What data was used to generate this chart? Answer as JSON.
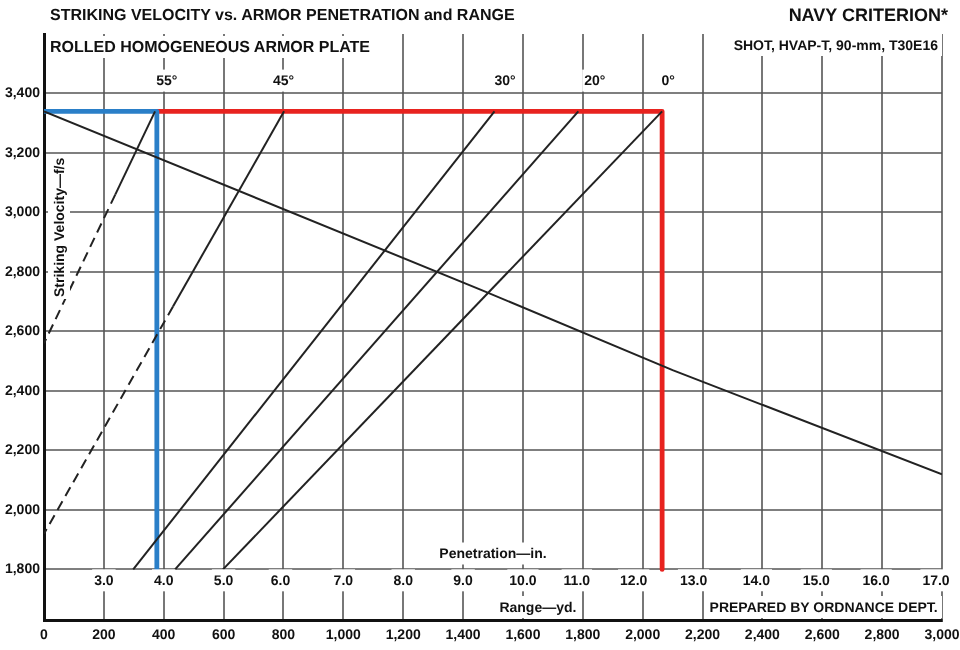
{
  "chart_data": {
    "type": "line",
    "title": "STRIKING VELOCITY vs. ARMOR PENETRATION and RANGE",
    "subtitle": "ROLLED HOMOGENEOUS ARMOR PLATE",
    "xlabel": "Range—yd.",
    "ylabel": "Striking Velocity—f/s",
    "annotations": [
      "NAVY CRITERION*",
      "SHOT, HVAP-T, 90-mm, T30E16",
      "PREPARED BY ORDNANCE DEPT.",
      "Penetration—in.",
      {
        "text": "55°",
        "x": 410,
        "y": 3440
      },
      {
        "text": "45°",
        "x": 800,
        "y": 3440
      },
      {
        "text": "30°",
        "x": 1540,
        "y": 3440
      },
      {
        "text": "20°",
        "x": 1840,
        "y": 3440
      },
      {
        "text": "0°",
        "x": 2085,
        "y": 3440
      },
      {
        "text": "3.0",
        "x": 200,
        "y": 1760
      },
      {
        "text": "4.0",
        "x": 400,
        "y": 1760
      },
      {
        "text": "5.0",
        "x": 600,
        "y": 1760
      },
      {
        "text": "6.0",
        "x": 790,
        "y": 1760
      },
      {
        "text": "7.0",
        "x": 1000,
        "y": 1760
      },
      {
        "text": "8.0",
        "x": 1200,
        "y": 1760
      },
      {
        "text": "9.0",
        "x": 1400,
        "y": 1760
      },
      {
        "text": "10.0",
        "x": 1600,
        "y": 1760
      },
      {
        "text": "11.0",
        "x": 1780,
        "y": 1760
      },
      {
        "text": "12.0",
        "x": 1970,
        "y": 1760
      },
      {
        "text": "13.0",
        "x": 2170,
        "y": 1760
      },
      {
        "text": "14.0",
        "x": 2380,
        "y": 1760
      },
      {
        "text": "15.0",
        "x": 2580,
        "y": 1760
      },
      {
        "text": "16.0",
        "x": 2780,
        "y": 1760
      },
      {
        "text": "17.0",
        "x": 2980,
        "y": 1760
      }
    ],
    "series": [
      {
        "color": "#222222",
        "x": [
          0,
          1460,
          2100,
          3000
        ],
        "values": [
          3340,
          2740,
          2470,
          2120
        ]
      },
      {
        "color": "#222222",
        "x": [
          371,
          238
        ],
        "values": [
          3340,
          3060
        ]
      },
      {
        "color": "#222222",
        "x": [
          238,
          0
        ],
        "values": [
          3060,
          2560
        ],
        "line_style": "dashed"
      },
      {
        "color": "#222222",
        "x": [
          802,
          431
        ],
        "values": [
          3340,
          2684
        ]
      },
      {
        "color": "#222222",
        "x": [
          431,
          0
        ],
        "values": [
          2684,
          1920
        ],
        "line_style": "dashed"
      },
      {
        "color": "#222222",
        "x": [
          1505,
          298
        ],
        "values": [
          3340,
          1800
        ]
      },
      {
        "color": "#222222",
        "x": [
          1785,
          438
        ],
        "values": [
          3340,
          1800
        ]
      },
      {
        "color": "#222222",
        "x": [
          2065,
          598
        ],
        "values": [
          3340,
          1800
        ]
      },
      {
        "color": "#2a7fc8",
        "x": [
          0,
          377,
          377
        ],
        "values": [
          3340,
          3340,
          1800
        ]
      },
      {
        "color": "#e8231f",
        "x": [
          377,
          2065,
          2065
        ],
        "values": [
          3340,
          3340,
          1800
        ]
      }
    ],
    "xlim": [
      0,
      3000
    ],
    "ylim": [
      1630,
      3600
    ],
    "xticks": [
      0,
      200,
      400,
      600,
      800,
      {
        "value": 1000,
        "label": "1,000"
      },
      {
        "value": 1200,
        "label": "1,200"
      },
      {
        "value": 1400,
        "label": "1,400"
      },
      {
        "value": 1600,
        "label": "1,600"
      },
      {
        "value": 1800,
        "label": "1,800"
      },
      {
        "value": 2000,
        "label": "2,000"
      },
      {
        "value": 2200,
        "label": "2,200"
      },
      {
        "value": 2400,
        "label": "2,400"
      },
      {
        "value": 2600,
        "label": "2,600"
      },
      {
        "value": 2800,
        "label": "2,800"
      },
      {
        "value": 3000,
        "label": "3,000"
      }
    ],
    "yticks": [
      {
        "value": 1800,
        "label": "1,800"
      },
      {
        "value": 2000,
        "label": "2,000"
      },
      {
        "value": 2200,
        "label": "2,200"
      },
      {
        "value": 2400,
        "label": "2,400"
      },
      {
        "value": 2600,
        "label": "2,600"
      },
      {
        "value": 2800,
        "label": "2,800"
      },
      {
        "value": 3000,
        "label": "3,000"
      },
      {
        "value": 3200,
        "label": "3,200"
      },
      {
        "value": 3400,
        "label": "3,400"
      }
    ],
    "grid": true,
    "legend": false,
    "marker": "none",
    "line_style": "solid"
  }
}
